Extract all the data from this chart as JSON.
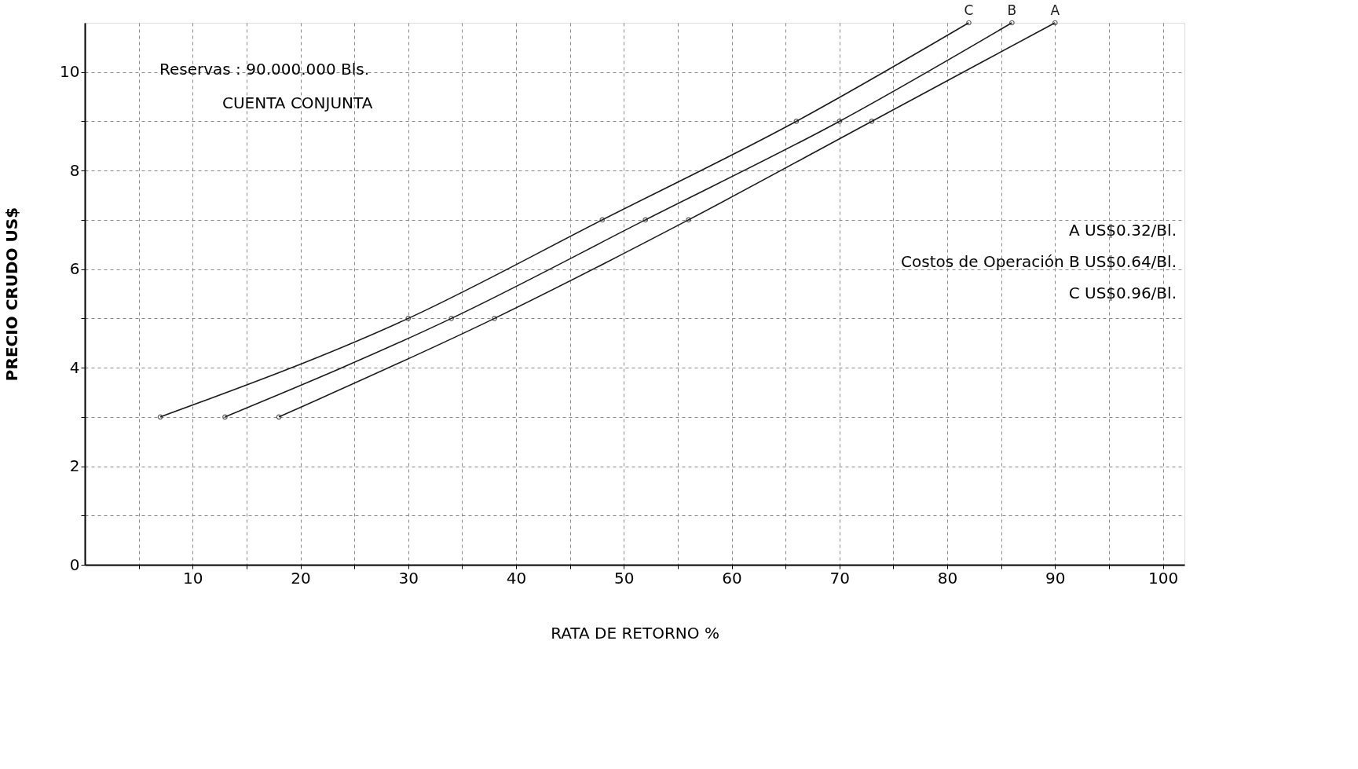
{
  "chart_data": {
    "type": "line",
    "xlabel": "RATA   DE   RETORNO   %",
    "ylabel": "PRECIO    CRUDO    US$",
    "xlim": [
      0,
      102
    ],
    "ylim": [
      0,
      11
    ],
    "xticks": [
      {
        "value": 5,
        "label": null
      },
      10,
      {
        "value": 15,
        "label": null
      },
      20,
      {
        "value": 25,
        "label": null
      },
      30,
      {
        "value": 35,
        "label": null
      },
      40,
      {
        "value": 45,
        "label": null
      },
      50,
      {
        "value": 55,
        "label": null
      },
      60,
      {
        "value": 65,
        "label": null
      },
      70,
      {
        "value": 75,
        "label": null
      },
      80,
      {
        "value": 85,
        "label": null
      },
      90,
      {
        "value": 95,
        "label": null
      },
      100
    ],
    "yticks": [
      0,
      {
        "value": 1,
        "label": null
      },
      2,
      {
        "value": 3,
        "label": null
      },
      4,
      {
        "value": 5,
        "label": null
      },
      6,
      {
        "value": 7,
        "label": null
      },
      8,
      {
        "value": 9,
        "label": null
      },
      10
    ],
    "grid": true,
    "marker": "circle",
    "line_style": "solid",
    "series": [
      {
        "name": "C",
        "color": "#1a1a1a",
        "x": [
          7,
          30,
          48,
          66,
          82
        ],
        "values": [
          3,
          5,
          7,
          9,
          11
        ]
      },
      {
        "name": "B",
        "color": "#1a1a1a",
        "x": [
          13,
          34,
          52,
          70,
          86
        ],
        "values": [
          3,
          5,
          7,
          9,
          11
        ]
      },
      {
        "name": "A",
        "color": "#1a1a1a",
        "x": [
          18,
          38,
          56,
          73,
          90
        ],
        "values": [
          3,
          5,
          7,
          9,
          11
        ]
      }
    ],
    "annotations": [
      "Reservas  : 90.000.000  Bls.",
      "CUENTA CONJUNTA",
      "A  US$0.32/Bl.",
      "Costos de Operación   B  US$0.64/Bl.",
      "C  US$0.96/Bl."
    ]
  }
}
